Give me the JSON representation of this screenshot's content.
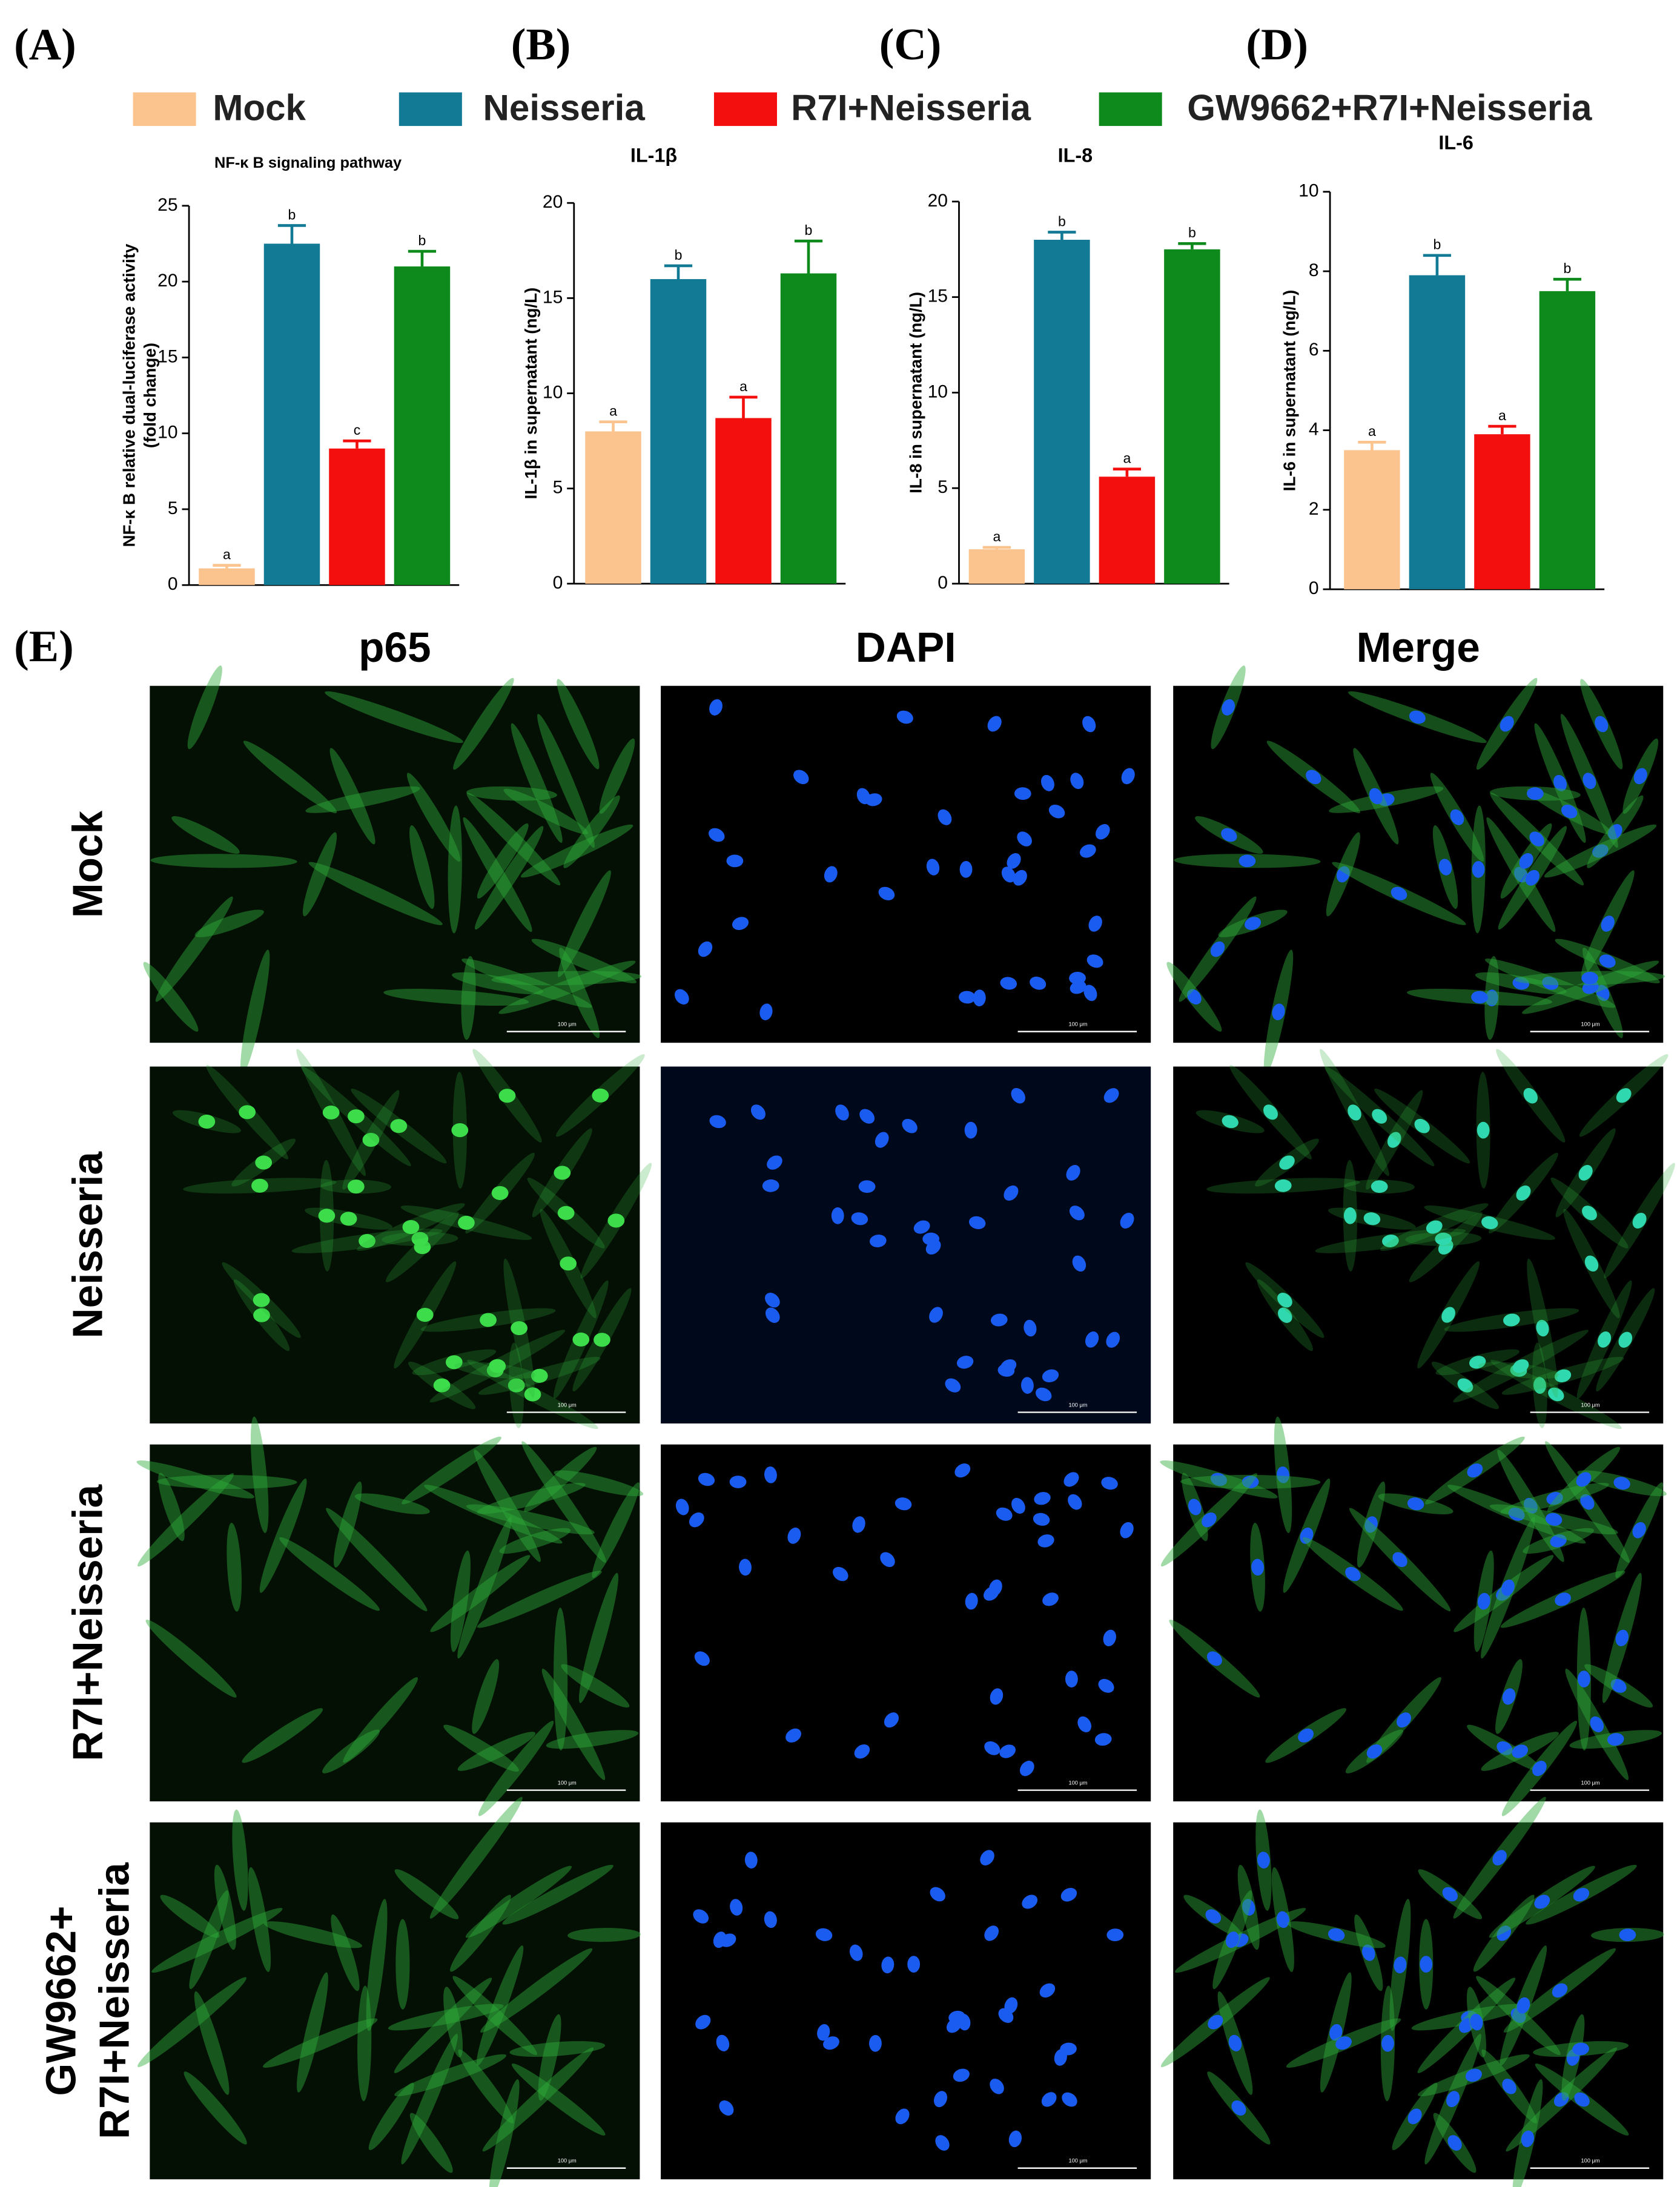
{
  "legend": [
    {
      "name": "Mock",
      "color": "#fbc48f"
    },
    {
      "name": "Neisseria",
      "color": "#137a96"
    },
    {
      "name": "R7I+Neisseria",
      "color": "#f40f0f"
    },
    {
      "name": "GW9662+R7I+Neisseria",
      "color": "#0d8a1b"
    }
  ],
  "chart_data": [
    {
      "type": "bar",
      "panel": "(A)",
      "title": "NF-κ B signaling pathway",
      "y_label": [
        "NF-κ B relative dual-luciferase activity",
        "(fold change)"
      ],
      "values": [
        1.1,
        22.5,
        9.0,
        21.0
      ],
      "errors": [
        0.2,
        1.2,
        0.5,
        1.0
      ],
      "annotations": [
        "a",
        "b",
        "c",
        "b"
      ],
      "ylim": [
        0,
        25
      ],
      "yticks": [
        0,
        5,
        10,
        15,
        20,
        25
      ]
    },
    {
      "type": "bar",
      "panel": "(B)",
      "title": "IL-1β",
      "y_label": [
        "IL-1β  in supernatant (ng/L)"
      ],
      "values": [
        8.0,
        16.0,
        8.7,
        16.3
      ],
      "errors": [
        0.5,
        0.7,
        1.1,
        1.7
      ],
      "annotations": [
        "a",
        "b",
        "a",
        "b"
      ],
      "ylim": [
        0,
        20
      ],
      "yticks": [
        0,
        5,
        10,
        15,
        20
      ]
    },
    {
      "type": "bar",
      "panel": "(C)",
      "title": "IL-8",
      "y_label": [
        "IL-8 in supernatant (ng/L)"
      ],
      "values": [
        1.8,
        18.0,
        5.6,
        17.5
      ],
      "errors": [
        0.1,
        0.4,
        0.4,
        0.3
      ],
      "annotations": [
        "a",
        "b",
        "a",
        "b"
      ],
      "ylim": [
        0,
        20
      ],
      "yticks": [
        0,
        5,
        10,
        15,
        20
      ]
    },
    {
      "type": "bar",
      "panel": "(D)",
      "title": "IL-6",
      "y_label": [
        "IL-6 in supernatant (ng/L)"
      ],
      "values": [
        3.5,
        7.9,
        3.9,
        7.5
      ],
      "errors": [
        0.2,
        0.5,
        0.2,
        0.3
      ],
      "annotations": [
        "a",
        "b",
        "a",
        "b"
      ],
      "ylim": [
        0,
        10
      ],
      "yticks": [
        0,
        2,
        4,
        6,
        8,
        10
      ]
    }
  ],
  "micrographs": {
    "panel": "(E)",
    "columns": [
      "p65",
      "DAPI",
      "Merge"
    ],
    "rows": [
      [
        "Mock"
      ],
      [
        "Neisseria"
      ],
      [
        "R7I+Neisseria"
      ],
      [
        "GW9662+",
        "R7I+Neisseria"
      ]
    ],
    "scale_bar": "100 μm"
  }
}
